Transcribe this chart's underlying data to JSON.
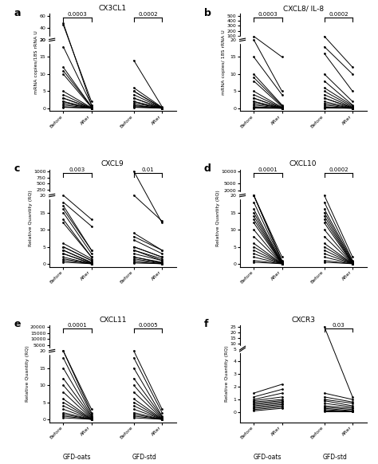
{
  "panels": [
    {
      "label": "a",
      "title": "CX3CL1",
      "ylabel": "mRNA copies/18S rRNA U",
      "pvals": [
        "0.0003",
        "0.0002"
      ],
      "pval_groups": [
        1,
        2
      ],
      "ybreak": true,
      "ybreak_low": 20,
      "ybreak_high": 60,
      "yticks_top": [
        20,
        40,
        60
      ],
      "yticks_bottom": [
        0,
        5,
        10,
        15,
        20
      ],
      "group1_before": [
        45,
        48,
        18,
        12,
        11,
        10,
        5,
        4,
        3,
        3,
        2,
        2,
        1.5,
        1,
        0.5,
        0.3
      ],
      "group1_after": [
        2,
        1,
        1,
        0.5,
        0.5,
        0.3,
        0.2,
        0.1,
        0.1,
        0.05,
        0.05,
        0.05,
        0.05,
        0.05,
        0.05,
        0.05
      ],
      "group2_before": [
        14,
        6,
        5,
        5,
        4,
        3,
        3,
        2,
        2,
        1.5,
        1,
        0.8,
        0.5,
        0.3
      ],
      "group2_after": [
        0.5,
        0.3,
        0.2,
        0.1,
        0.1,
        0.05,
        0.05,
        0.05,
        0.05,
        0.05,
        0.05,
        0.05,
        0.05,
        0.05
      ]
    },
    {
      "label": "b",
      "title": "CXCL8/ IL-8",
      "ylabel": "mRNA copies/ 18S rRNA U",
      "pvals": [
        "0.0003",
        "0.0002"
      ],
      "pval_groups": [
        1,
        2
      ],
      "ybreak": true,
      "ybreak_low": 20,
      "ybreak_high": 500,
      "yticks_top": [
        100,
        200,
        300,
        400,
        500
      ],
      "yticks_bottom": [
        0,
        5,
        10,
        15,
        20
      ],
      "group1_before": [
        90,
        20,
        15,
        10,
        9,
        8,
        5,
        4,
        3,
        3,
        2,
        2,
        1.5,
        1,
        0.5,
        0.3,
        0.1,
        0.1
      ],
      "group1_after": [
        15,
        5,
        4,
        1,
        0.8,
        0.5,
        0.3,
        0.2,
        0.1,
        0.1,
        0.05,
        0.05,
        0.05,
        0.05,
        0.05,
        0.05,
        0.05,
        0.05
      ],
      "group2_before": [
        90,
        18,
        16,
        10,
        8,
        6,
        5,
        4,
        3,
        3,
        2,
        1.5,
        1,
        0.5,
        0.3,
        0.2,
        0.1
      ],
      "group2_after": [
        12,
        10,
        5,
        2,
        1,
        0.8,
        0.5,
        0.3,
        0.2,
        0.1,
        0.1,
        0.05,
        0.05,
        0.05,
        0.05,
        0.05,
        0.05
      ]
    },
    {
      "label": "c",
      "title": "CXCL9",
      "ylabel": "Relative Quantity (RQ)",
      "pvals": [
        "0.003",
        "0.01"
      ],
      "pval_groups": [
        1,
        2
      ],
      "ybreak": true,
      "ybreak_low": 20,
      "ybreak_high": 1000,
      "yticks_top": [
        250,
        500,
        750,
        1000
      ],
      "yticks_bottom": [
        0,
        5,
        10,
        15,
        20
      ],
      "group1_before": [
        25,
        18,
        17,
        16,
        15,
        13,
        12,
        6,
        5,
        5,
        4,
        4,
        3,
        3,
        2,
        1.5,
        1,
        0.5
      ],
      "group1_after": [
        13,
        11,
        4,
        4,
        3,
        2,
        2,
        1.5,
        1,
        1,
        0.5,
        0.3,
        0.2,
        0.1,
        0.05,
        0.05,
        0.05,
        0.05
      ],
      "group2_before": [
        25,
        1000,
        9,
        8,
        7,
        5,
        5,
        4,
        4,
        3,
        2,
        2,
        1.5,
        1,
        0.5,
        0.3
      ],
      "group2_after": [
        12.5,
        12,
        4,
        4,
        3,
        2,
        2,
        1.5,
        1,
        1,
        0.5,
        0.3,
        0.2,
        0.1,
        0.05,
        0.05
      ]
    },
    {
      "label": "d",
      "title": "CXCL10",
      "ylabel": "Relative Quantity (RQ)",
      "pvals": [
        "0.0001",
        "0.0002"
      ],
      "pval_groups": [
        1,
        2
      ],
      "ybreak": true,
      "ybreak_low": 20,
      "ybreak_high": 10000,
      "yticks_top": [
        2000,
        5000,
        10000
      ],
      "yticks_bottom": [
        0,
        5,
        10,
        15,
        20
      ],
      "group1_before": [
        25,
        22,
        20,
        18,
        16,
        15,
        14,
        13,
        12,
        10,
        8,
        6,
        5,
        4,
        3,
        2,
        1,
        0.5
      ],
      "group1_after": [
        2,
        1,
        0.8,
        0.5,
        0.3,
        0.2,
        0.1,
        0.1,
        0.05,
        0.05,
        0.05,
        0.05,
        0.05,
        0.05,
        0.05,
        0.05,
        0.05,
        0.05
      ],
      "group2_before": [
        20,
        18,
        16,
        15,
        14,
        13,
        12,
        10,
        8,
        6,
        5,
        4,
        3,
        2,
        1,
        0.5
      ],
      "group2_after": [
        2,
        1,
        0.8,
        0.5,
        0.3,
        0.2,
        0.1,
        0.1,
        0.05,
        0.05,
        0.05,
        0.05,
        0.05,
        0.05,
        0.05,
        0.05
      ]
    },
    {
      "label": "e",
      "title": "CXCL11",
      "ylabel": "Relative Quantity (RQ)",
      "pvals": [
        "0.0001",
        "0.0005"
      ],
      "pval_groups": [
        1,
        2
      ],
      "ybreak": true,
      "ybreak_low": 20,
      "ybreak_high": 20000,
      "yticks_top": [
        5000,
        10000,
        15000,
        20000
      ],
      "yticks_bottom": [
        0,
        5,
        10,
        15,
        20
      ],
      "group1_before": [
        22,
        20,
        18,
        15,
        12,
        10,
        8,
        6,
        5,
        4,
        3,
        2,
        1.5,
        1,
        0.5
      ],
      "group1_after": [
        3,
        2,
        1.5,
        1,
        0.8,
        0.5,
        0.3,
        0.2,
        0.1,
        0.1,
        0.05,
        0.05,
        0.05,
        0.05,
        0.05
      ],
      "group2_before": [
        22,
        18,
        15,
        12,
        10,
        8,
        6,
        5,
        4,
        3,
        2,
        1.5,
        1,
        0.5
      ],
      "group2_after": [
        3,
        2,
        1,
        0.8,
        0.5,
        0.3,
        0.2,
        0.1,
        0.05,
        0.05,
        0.05,
        0.05,
        0.05,
        0.05
      ],
      "xlabel1": "GFD-oats",
      "xlabel2": "GFD-std"
    },
    {
      "label": "f",
      "title": "CXCR3",
      "ylabel": "Relative Quantity (RQ)",
      "pvals": [
        "0.03"
      ],
      "pval_groups": [
        2
      ],
      "ybreak": true,
      "ybreak_low": 5,
      "ybreak_high": 25,
      "yticks_top": [
        10,
        15,
        20,
        25
      ],
      "yticks_bottom": [
        0,
        1,
        2,
        3,
        4,
        5
      ],
      "group1_before": [
        1.5,
        1.2,
        1.0,
        0.9,
        0.8,
        0.7,
        0.6,
        0.5,
        0.4,
        0.3,
        0.2,
        0.1
      ],
      "group1_after": [
        2.2,
        1.8,
        1.5,
        1.2,
        1.0,
        0.9,
        0.8,
        0.7,
        0.6,
        0.5,
        0.4,
        0.3
      ],
      "group2_before": [
        25,
        1.5,
        1.2,
        1.0,
        0.9,
        0.7,
        0.5,
        0.4,
        0.3,
        0.2,
        0.1,
        0.05
      ],
      "group2_after": [
        1.2,
        1.0,
        0.8,
        0.7,
        0.5,
        0.4,
        0.3,
        0.2,
        0.1,
        0.05,
        0.05,
        0.05
      ],
      "xlabel1": "GFD-oats",
      "xlabel2": "GFD-std"
    }
  ],
  "line_color": "#000000",
  "dot_color": "#000000",
  "background_color": "#ffffff"
}
